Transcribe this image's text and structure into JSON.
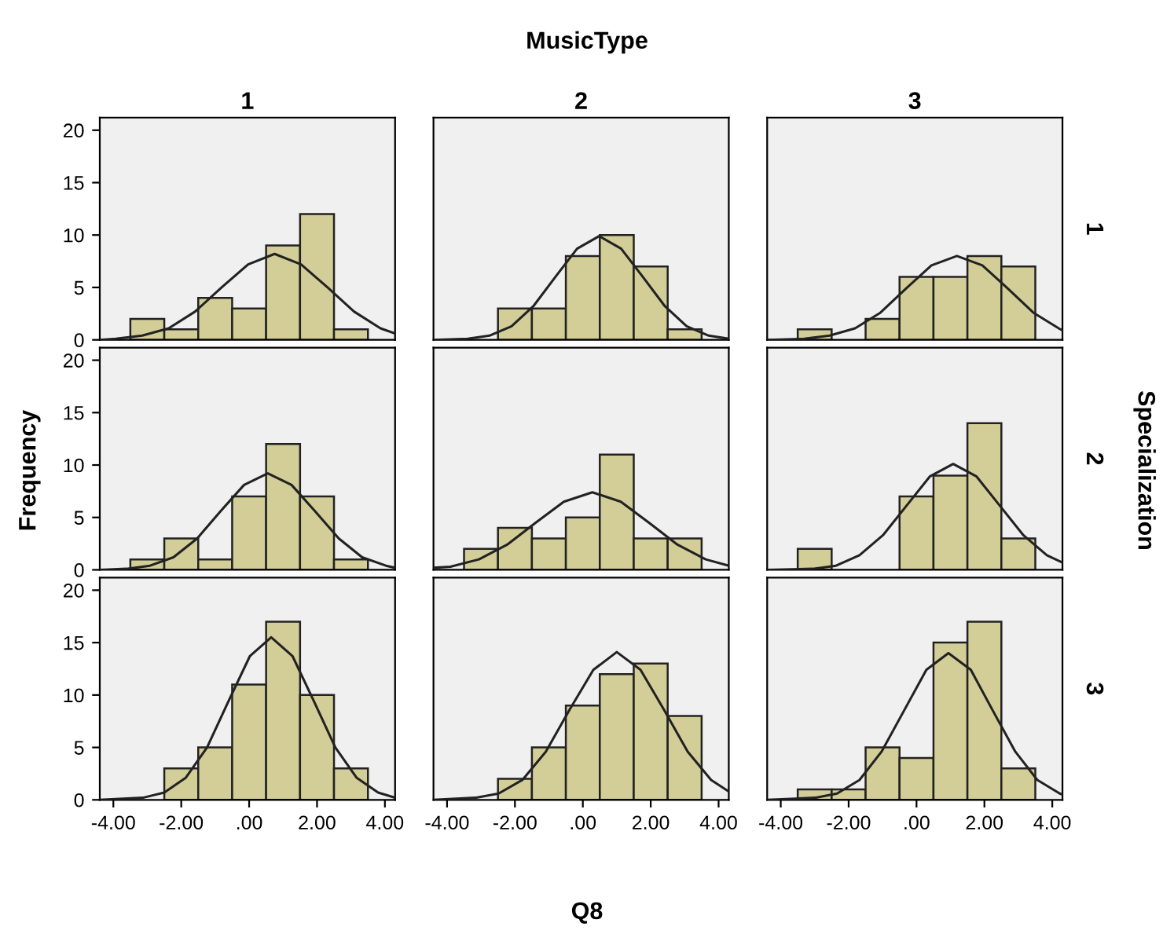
{
  "chart_data": [
    {
      "type": "histogram",
      "title": "1",
      "bins": [
        -3.5,
        -2.5,
        -1.5,
        -0.5,
        0.5,
        1.5,
        2.5,
        3.5
      ],
      "values": [
        2,
        1,
        4,
        3,
        9,
        12,
        1
      ],
      "color": "#d3ce97",
      "xlim": [
        -4.4,
        4.3
      ],
      "ylim": [
        0,
        21.2
      ],
      "yticks": [
        0,
        5,
        10,
        15,
        20
      ],
      "tick_labels": "y",
      "grid": false,
      "series": [
        {
          "type": "line",
          "color": "#222222",
          "x": [
            -4.4,
            -3.93,
            -3.15,
            -2.37,
            -1.59,
            -0.81,
            -0.03,
            0.75,
            1.53,
            2.31,
            3.09,
            3.87,
            4.3
          ],
          "values": [
            0,
            0.1,
            0.4,
            1.1,
            2.7,
            5.0,
            7.2,
            8.2,
            7.2,
            5.0,
            2.7,
            1.1,
            0.6
          ]
        }
      ]
    },
    {
      "type": "histogram",
      "title": "2",
      "annotations": [
        "MusicType"
      ],
      "bins": [
        -3.5,
        -2.5,
        -1.5,
        -0.5,
        0.5,
        1.5,
        2.5,
        3.5
      ],
      "values": [
        0,
        3,
        3,
        8,
        10,
        7,
        1
      ],
      "color": "#d3ce97",
      "xlim": [
        -4.4,
        4.3
      ],
      "ylim": [
        0,
        21.2
      ],
      "tick_labels": false,
      "grid": false,
      "series": [
        {
          "type": "line",
          "color": "#222222",
          "x": [
            -4.4,
            -3.39,
            -2.75,
            -2.1,
            -1.46,
            -0.81,
            -0.17,
            0.48,
            1.13,
            1.77,
            2.42,
            3.06,
            3.71,
            4.3
          ],
          "values": [
            0,
            0.1,
            0.4,
            1.3,
            3.2,
            6.0,
            8.7,
            9.9,
            8.7,
            6.0,
            3.2,
            1.3,
            0.4,
            0.1
          ]
        }
      ]
    },
    {
      "type": "histogram",
      "title": "3",
      "y2label": "1",
      "bins": [
        -3.5,
        -2.5,
        -1.5,
        -0.5,
        0.5,
        1.5,
        2.5,
        3.5
      ],
      "values": [
        1,
        0,
        2,
        6,
        6,
        8,
        7
      ],
      "color": "#d3ce97",
      "xlim": [
        -4.4,
        4.3
      ],
      "ylim": [
        0,
        21.2
      ],
      "tick_labels": false,
      "grid": false,
      "series": [
        {
          "type": "line",
          "color": "#222222",
          "x": [
            -4.4,
            -3.31,
            -2.56,
            -1.81,
            -1.06,
            -0.31,
            0.44,
            1.19,
            1.94,
            2.69,
            3.44,
            4.19,
            4.3
          ],
          "values": [
            0,
            0.1,
            0.4,
            1.1,
            2.6,
            4.9,
            7.1,
            8.0,
            7.1,
            4.9,
            2.6,
            1.1,
            0.9
          ]
        }
      ]
    },
    {
      "type": "histogram",
      "ylabel": "Frequency",
      "bins": [
        -3.5,
        -2.5,
        -1.5,
        -0.5,
        0.5,
        1.5,
        2.5,
        3.5
      ],
      "values": [
        1,
        3,
        1,
        7,
        12,
        7,
        1
      ],
      "color": "#d3ce97",
      "xlim": [
        -4.4,
        4.3
      ],
      "ylim": [
        0,
        21.2
      ],
      "yticks": [
        0,
        5,
        10,
        15,
        20
      ],
      "tick_labels": "y",
      "grid": false,
      "series": [
        {
          "type": "line",
          "color": "#222222",
          "x": [
            -4.4,
            -3.62,
            -2.92,
            -2.23,
            -1.53,
            -0.84,
            -0.15,
            0.55,
            1.25,
            1.94,
            2.64,
            3.33,
            4.03,
            4.3
          ],
          "values": [
            0,
            0.1,
            0.4,
            1.2,
            3.0,
            5.6,
            8.1,
            9.2,
            8.1,
            5.6,
            3.0,
            1.2,
            0.4,
            0.2
          ]
        }
      ]
    },
    {
      "type": "histogram",
      "bins": [
        -3.5,
        -2.5,
        -1.5,
        -0.5,
        0.5,
        1.5,
        2.5,
        3.5
      ],
      "values": [
        2,
        4,
        3,
        5,
        11,
        3,
        3
      ],
      "color": "#d3ce97",
      "xlim": [
        -4.4,
        4.3
      ],
      "ylim": [
        0,
        21.2
      ],
      "tick_labels": false,
      "grid": false,
      "series": [
        {
          "type": "line",
          "color": "#222222",
          "x": [
            -4.4,
            -3.9,
            -3.06,
            -2.23,
            -1.39,
            -0.56,
            0.28,
            1.12,
            1.95,
            2.79,
            3.62,
            4.3
          ],
          "values": [
            0.2,
            0.3,
            1.0,
            2.4,
            4.5,
            6.5,
            7.4,
            6.5,
            4.5,
            2.4,
            1.0,
            0.4
          ]
        }
      ]
    },
    {
      "type": "histogram",
      "y2label": "2",
      "annotations": [
        "Specialization"
      ],
      "bins": [
        -3.5,
        -2.5,
        -1.5,
        -0.5,
        0.5,
        1.5,
        2.5,
        3.5
      ],
      "values": [
        2,
        0,
        0,
        7,
        9,
        14,
        3
      ],
      "color": "#d3ce97",
      "xlim": [
        -4.4,
        4.3
      ],
      "ylim": [
        0,
        21.2
      ],
      "tick_labels": false,
      "grid": false,
      "series": [
        {
          "type": "line",
          "color": "#222222",
          "x": [
            -4.4,
            -3.06,
            -2.37,
            -1.68,
            -0.99,
            -0.3,
            0.39,
            1.08,
            1.77,
            2.46,
            3.15,
            3.84,
            4.3
          ],
          "values": [
            0,
            0.1,
            0.4,
            1.4,
            3.3,
            6.1,
            8.9,
            10.1,
            8.9,
            6.1,
            3.3,
            1.4,
            0.7
          ]
        }
      ]
    },
    {
      "type": "histogram",
      "bins": [
        -3.5,
        -2.5,
        -1.5,
        -0.5,
        0.5,
        1.5,
        2.5,
        3.5
      ],
      "values": [
        0,
        3,
        5,
        11,
        17,
        10,
        3
      ],
      "color": "#d3ce97",
      "xlim": [
        -4.4,
        4.3
      ],
      "ylim": [
        0,
        21.2
      ],
      "xticks": [
        {
          "value": -4,
          "label": "-4.00"
        },
        {
          "value": -2,
          "label": "-2.00"
        },
        {
          "value": 0,
          "label": ".00"
        },
        {
          "value": 2,
          "label": "2.00"
        },
        {
          "value": 4,
          "label": "4.00"
        }
      ],
      "yticks": [
        0,
        5,
        10,
        15,
        20
      ],
      "grid": false,
      "series": [
        {
          "type": "line",
          "color": "#222222",
          "x": [
            -4.4,
            -3.13,
            -2.5,
            -1.87,
            -1.24,
            -0.61,
            0.02,
            0.65,
            1.28,
            1.91,
            2.54,
            3.17,
            3.8,
            4.3
          ],
          "values": [
            0,
            0.2,
            0.7,
            2.1,
            5.0,
            9.4,
            13.7,
            15.5,
            13.7,
            9.4,
            5.0,
            2.1,
            0.7,
            0.2
          ]
        }
      ]
    },
    {
      "type": "histogram",
      "xlabel": "Q8",
      "bins": [
        -3.5,
        -2.5,
        -1.5,
        -0.5,
        0.5,
        1.5,
        2.5,
        3.5
      ],
      "values": [
        0,
        2,
        5,
        9,
        12,
        13,
        8
      ],
      "color": "#d3ce97",
      "xlim": [
        -4.4,
        4.3
      ],
      "ylim": [
        0,
        21.2
      ],
      "xticks": [
        {
          "value": -4,
          "label": "-4.00"
        },
        {
          "value": -2,
          "label": "-2.00"
        },
        {
          "value": 0,
          "label": ".00"
        },
        {
          "value": 2,
          "label": "2.00"
        },
        {
          "value": 4,
          "label": "4.00"
        }
      ],
      "tick_labels": "x",
      "grid": false,
      "series": [
        {
          "type": "line",
          "color": "#222222",
          "x": [
            -4.4,
            -3.17,
            -2.48,
            -1.78,
            -1.09,
            -0.39,
            0.31,
            1.0,
            1.7,
            2.39,
            3.09,
            3.78,
            4.3
          ],
          "values": [
            0,
            0.2,
            0.6,
            1.9,
            4.6,
            8.6,
            12.4,
            14.1,
            12.4,
            8.6,
            4.6,
            1.9,
            0.8
          ]
        }
      ]
    },
    {
      "type": "histogram",
      "y2label": "3",
      "bins": [
        -3.5,
        -2.5,
        -1.5,
        -0.5,
        0.5,
        1.5,
        2.5,
        3.5
      ],
      "values": [
        1,
        1,
        5,
        4,
        15,
        17,
        3
      ],
      "color": "#d3ce97",
      "xlim": [
        -4.4,
        4.3
      ],
      "ylim": [
        0,
        21.2
      ],
      "xticks": [
        {
          "value": -4,
          "label": "-4.00"
        },
        {
          "value": -2,
          "label": "-2.00"
        },
        {
          "value": 0,
          "label": ".00"
        },
        {
          "value": 2,
          "label": "2.00"
        },
        {
          "value": 4,
          "label": "4.00"
        }
      ],
      "tick_labels": "x",
      "grid": false,
      "series": [
        {
          "type": "line",
          "color": "#222222",
          "x": [
            -4.4,
            -2.99,
            -2.34,
            -1.68,
            -1.03,
            -0.37,
            0.29,
            0.94,
            1.6,
            2.25,
            2.91,
            3.56,
            4.22,
            4.3
          ],
          "values": [
            0,
            0.2,
            0.6,
            1.9,
            4.6,
            8.5,
            12.4,
            14.0,
            12.4,
            8.5,
            4.6,
            1.9,
            0.6,
            0.5
          ]
        }
      ]
    }
  ]
}
